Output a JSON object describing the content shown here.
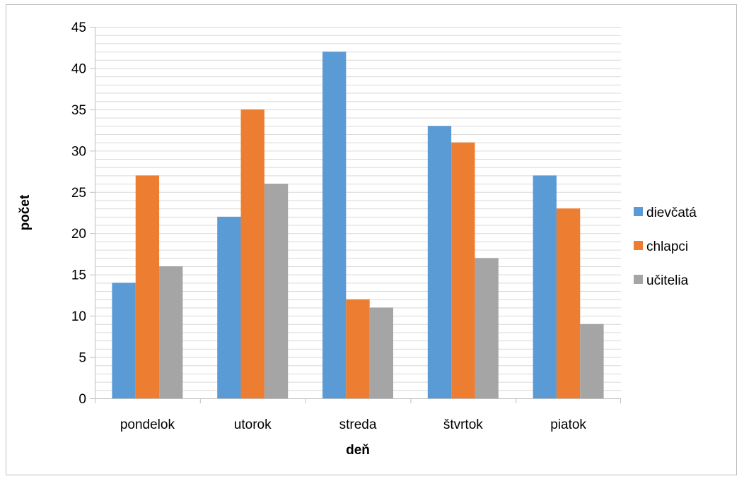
{
  "chart_data": {
    "type": "bar",
    "categories": [
      "pondelok",
      "utorok",
      "streda",
      "štvrtok",
      "piatok"
    ],
    "series": [
      {
        "name": "dievčatá",
        "values": [
          14,
          22,
          42,
          33,
          27
        ],
        "color": "#5b9bd5"
      },
      {
        "name": "chlapci",
        "values": [
          27,
          35,
          12,
          31,
          23
        ],
        "color": "#ed7d31"
      },
      {
        "name": "učitelia",
        "values": [
          16,
          26,
          11,
          17,
          9
        ],
        "color": "#a5a5a5"
      }
    ],
    "xlabel": "deň",
    "ylabel": "počet",
    "ylim": [
      0,
      45
    ],
    "yticks": [
      0,
      5,
      10,
      15,
      20,
      25,
      30,
      35,
      40,
      45
    ],
    "minor_grid_step": 1,
    "grid": true,
    "legend_position": "right",
    "grid_color": "#d9d9d9",
    "axis_color": "#bfbfbf"
  }
}
